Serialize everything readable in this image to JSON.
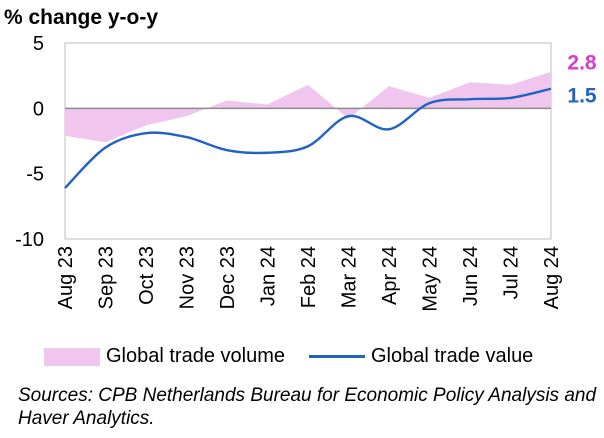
{
  "chart_data": {
    "type": "line",
    "ylabel": "% change y-o-y",
    "ylim": [
      -10,
      5
    ],
    "yticks": [
      5,
      0,
      -5,
      -10
    ],
    "categories": [
      "Aug 23",
      "Sep 23",
      "Oct 23",
      "Nov 23",
      "Dec 23",
      "Jan 24",
      "Feb 24",
      "Mar 24",
      "Apr 24",
      "May 24",
      "Jun 24",
      "Jul 24",
      "Aug 24"
    ],
    "series": [
      {
        "name": "Global trade volume",
        "kind": "area",
        "color": "#f0c6ee",
        "values": [
          -2.1,
          -2.6,
          -1.3,
          -0.6,
          0.6,
          0.3,
          1.8,
          -0.8,
          1.7,
          0.8,
          2.0,
          1.8,
          2.8
        ]
      },
      {
        "name": "Global trade value",
        "kind": "line",
        "color": "#1f63c3",
        "values": [
          -6.1,
          -3.0,
          -1.9,
          -2.2,
          -3.2,
          -3.4,
          -2.9,
          -0.6,
          -1.6,
          0.4,
          0.7,
          0.8,
          1.5
        ]
      }
    ],
    "end_labels": [
      {
        "text": "2.8",
        "color": "#d63ccd"
      },
      {
        "text": "1.5",
        "color": "#1f63c3"
      }
    ]
  },
  "source": "Sources: CPB Netherlands Bureau for Economic Policy Analysis and Haver Analytics."
}
